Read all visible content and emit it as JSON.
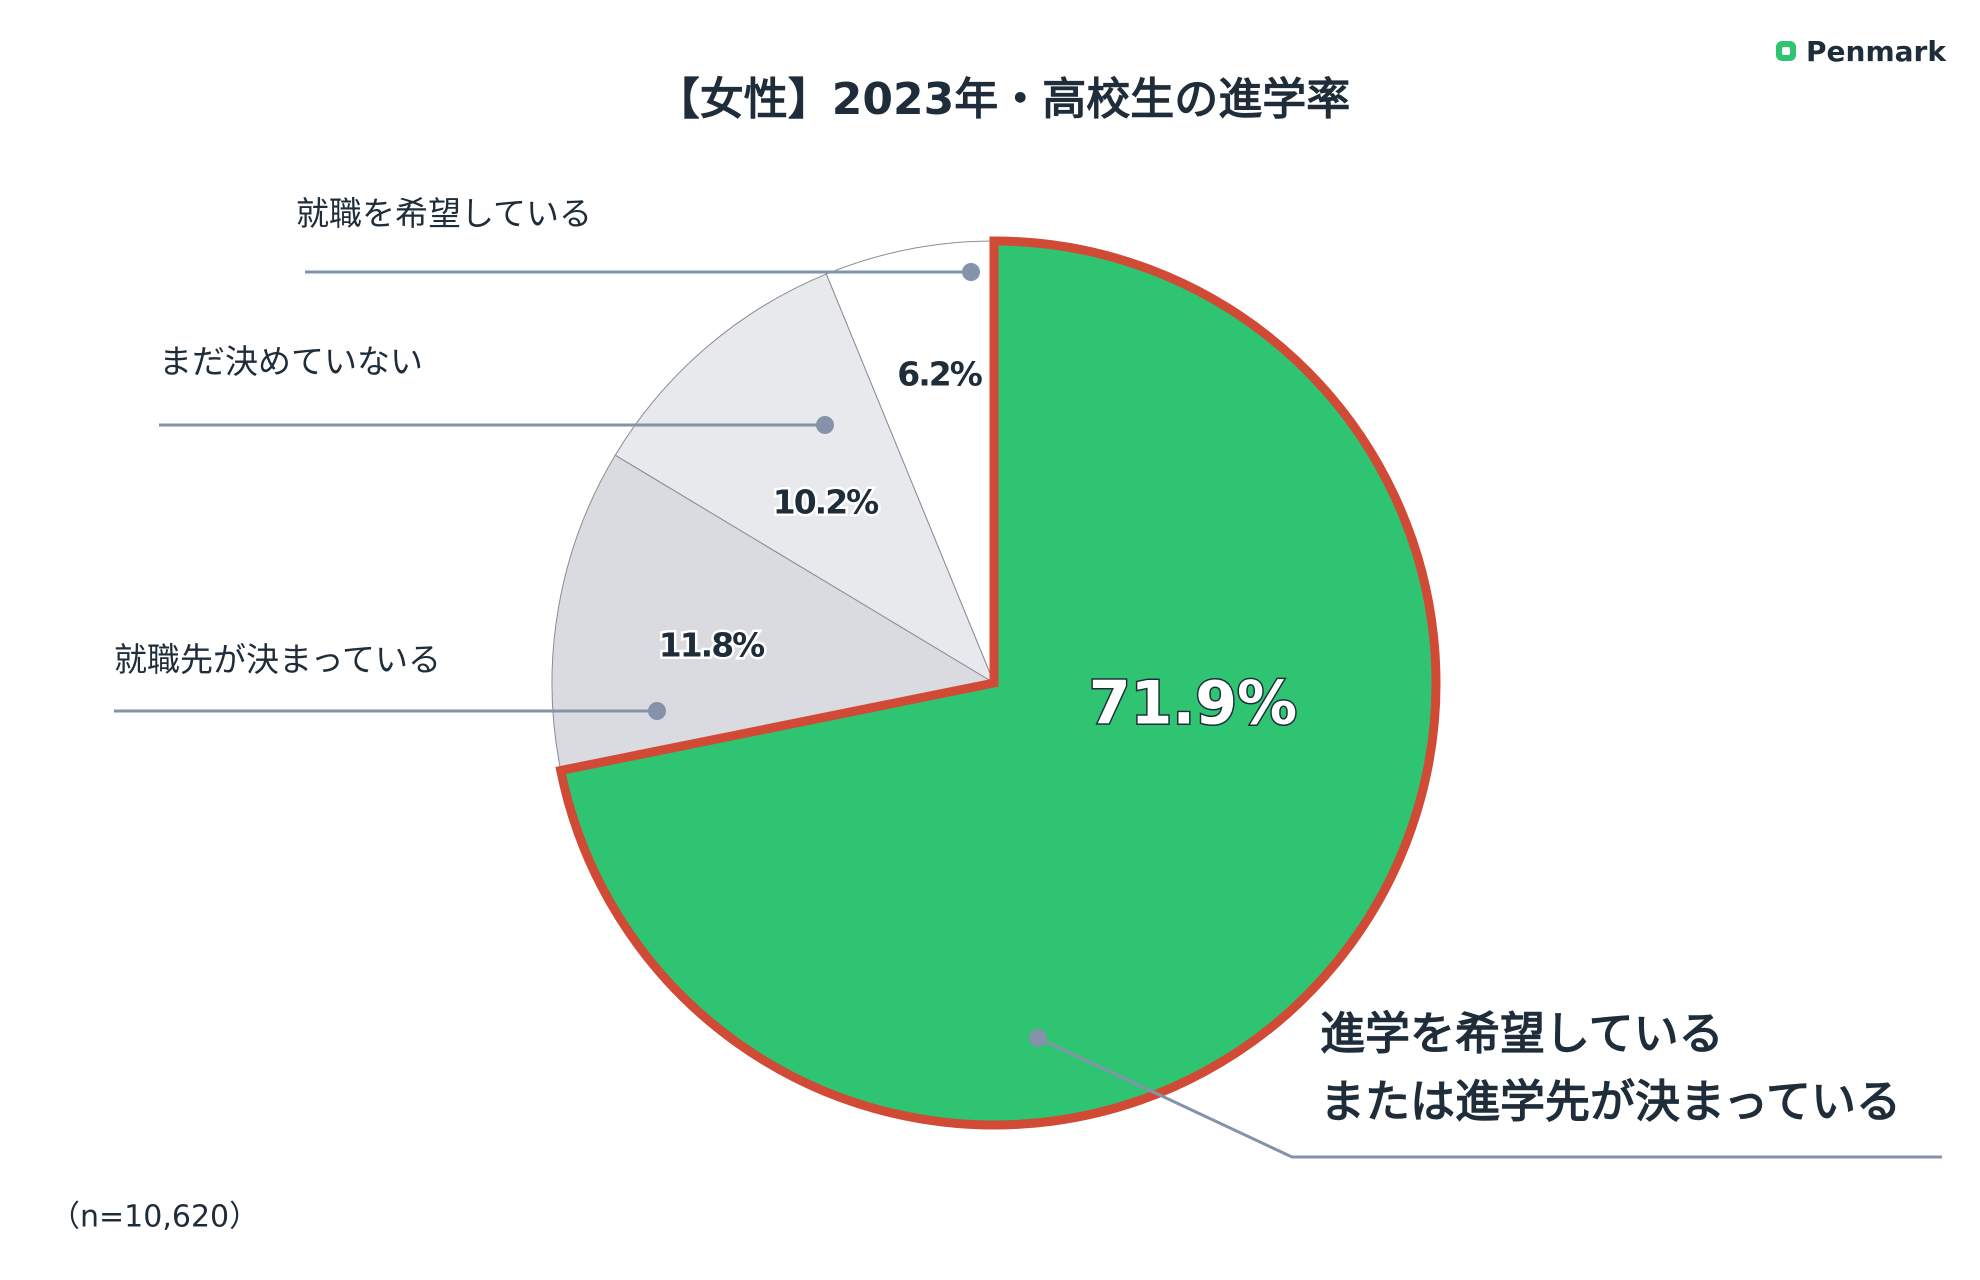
{
  "chart_data": {
    "type": "pie",
    "title": "【女性】2023年・高校生の進学率",
    "categories": [
      "進学を希望している\nまたは進学先が決まっている",
      "就職先が決まっている",
      "まだ決めていない",
      "就職を希望している"
    ],
    "values": [
      71.9,
      11.8,
      10.2,
      6.2
    ],
    "value_labels": [
      "71.9%",
      "11.8%",
      "10.2%",
      "6.2%"
    ],
    "colors": [
      "#2ec472",
      "#dadbe0",
      "#e8e9ed",
      "#ffffff"
    ],
    "highlight_color": "#d04a35",
    "note": "（n=10,620）"
  },
  "logo": "Penmark"
}
